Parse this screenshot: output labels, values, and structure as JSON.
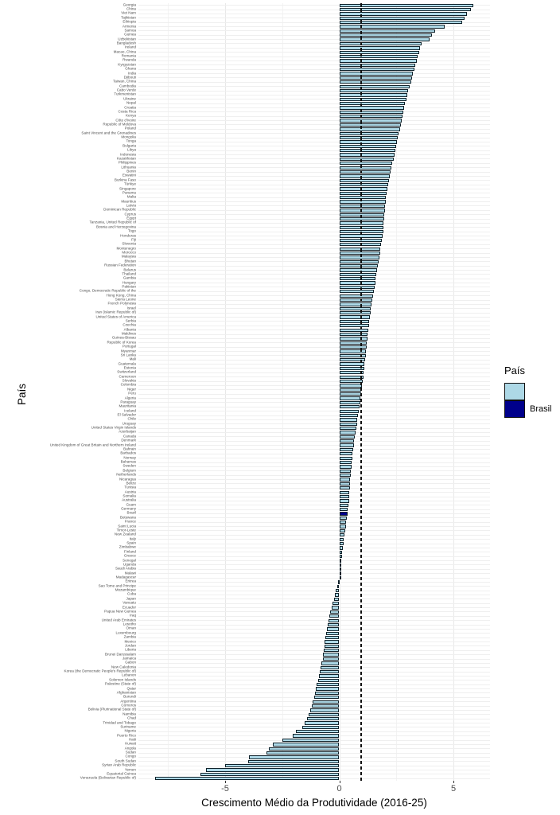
{
  "chart_data": {
    "type": "bar",
    "orientation": "horizontal",
    "xlabel": "Crescimento Médio da Produtividade (2016-25)",
    "ylabel": "País",
    "xlim": [
      -8.8,
      6.6
    ],
    "x_ticks": [
      {
        "value": -5,
        "label": "-5"
      },
      {
        "value": 0,
        "label": "0"
      },
      {
        "value": 5,
        "label": "5"
      }
    ],
    "x_minor_gridlines": [
      -7.5,
      -2.5,
      2.5
    ],
    "reference_line_x": 0.93,
    "highlight_category": "Brazil",
    "colors": {
      "default_fill": "#ADD8E6",
      "highlight_fill": "#00008B",
      "bar_outline": "#10222b",
      "reference_line": "#111111"
    },
    "categories": [
      "Georgia",
      "China",
      "Viet Nam",
      "Tajikistan",
      "Ethiopia",
      "Armenia",
      "Samoa",
      "Guinea",
      "Uzbekistan",
      "Bangladesh",
      "Ireland",
      "Macao, China",
      "Romania",
      "Rwanda",
      "Kyrgyzstan",
      "Ghana",
      "India",
      "Djibouti",
      "Taiwan, China",
      "Cambodia",
      "Cabo Verde",
      "Turkmenistan",
      "Ukraine",
      "Nepal",
      "Croatia",
      "Costa Rica",
      "Kenya",
      "Côte d'Ivoire",
      "Republic of Moldova",
      "Poland",
      "Saint Vincent and the Grenadines",
      "Mongolia",
      "Tonga",
      "Bulgaria",
      "Libya",
      "Indonesia",
      "Kazakhstan",
      "Philippines",
      "Lithuania",
      "Benin",
      "Eswatini",
      "Burkina Faso",
      "Türkiye",
      "Singapore",
      "Panama",
      "Malta",
      "Mauritius",
      "Latvia",
      "Dominican Republic",
      "Cyprus",
      "Egypt",
      "Tanzania, United Republic of",
      "Bosnia and Herzegovina",
      "Togo",
      "Honduras",
      "Fiji",
      "Slovenia",
      "Montenegro",
      "Morocco",
      "Malaysia",
      "Bhutan",
      "Russian Federation",
      "Belarus",
      "Thailand",
      "Gambia",
      "Hungary",
      "Pakistan",
      "Congo, Democratic Republic of the",
      "Hong Kong, China",
      "Sierra Leone",
      "French Polynesia",
      "Israel",
      "Iran (Islamic Republic of)",
      "United States of America",
      "Serbia",
      "Czechia",
      "Albania",
      "Maldives",
      "Guinea-Bissau",
      "Republic of Korea",
      "Portugal",
      "Myanmar",
      "Sri Lanka",
      "Mali",
      "Guatemala",
      "Estonia",
      "Switzerland",
      "Cameroon",
      "Slovakia",
      "Colombia",
      "Niger",
      "Peru",
      "Algeria",
      "Paraguay",
      "Mauritania",
      "Iceland",
      "El Salvador",
      "Chile",
      "Uruguay",
      "United States Virgin Islands",
      "Azerbaijan",
      "Canada",
      "Denmark",
      "United Kingdom of Great Britain and Northern Ireland",
      "Bahrain",
      "Barbados",
      "Norway",
      "Bahamas",
      "Sweden",
      "Belgium",
      "Netherlands",
      "Nicaragua",
      "Belize",
      "Tunisia",
      "Austria",
      "Somalia",
      "Australia",
      "Guam",
      "Germany",
      "Brazil",
      "Botswana",
      "France",
      "Saint Lucia",
      "Timor-Leste",
      "New Zealand",
      "Italy",
      "Spain",
      "Zimbabwe",
      "Finland",
      "Greece",
      "Senegal",
      "Uganda",
      "Saudi Arabia",
      "Malawi",
      "Madagascar",
      "Eritrea",
      "Sao Tome and Principe",
      "Mozambique",
      "Cuba",
      "Japan",
      "Vanuatu",
      "Ecuador",
      "Papua New Guinea",
      "Iraq",
      "United Arab Emirates",
      "Lesotho",
      "Oman",
      "Luxembourg",
      "Zambia",
      "Mexico",
      "Jordan",
      "Liberia",
      "Brunei Darussalam",
      "Jamaica",
      "Gabon",
      "New Caledonia",
      "Korea (the Democratic People's Republic of)",
      "Lebanon",
      "Solomon Islands",
      "Palestine (State of)",
      "Qatar",
      "Afghanistan",
      "Burundi",
      "Argentina",
      "Comoros",
      "Bolivia (Plurinational State of)",
      "Namibia",
      "Chad",
      "Trinidad and Tobago",
      "Suriname",
      "Nigeria",
      "Puerto Rico",
      "Haiti",
      "Kuwait",
      "Angola",
      "Sudan",
      "Congo",
      "South Sudan",
      "Syrian Arab Republic",
      "Yemen",
      "Equatorial Guinea",
      "Venezuela (Bolivarian Republic of)"
    ],
    "values": [
      5.87,
      5.76,
      5.58,
      5.49,
      5.37,
      4.62,
      4.19,
      4.07,
      3.95,
      3.62,
      3.55,
      3.49,
      3.44,
      3.39,
      3.34,
      3.29,
      3.24,
      3.19,
      3.14,
      3.08,
      3.02,
      2.97,
      2.93,
      2.89,
      2.85,
      2.81,
      2.77,
      2.73,
      2.69,
      2.65,
      2.61,
      2.57,
      2.53,
      2.49,
      2.45,
      2.41,
      2.37,
      2.33,
      2.29,
      2.25,
      2.21,
      2.17,
      2.13,
      2.1,
      2.07,
      2.05,
      2.03,
      2.01,
      1.99,
      1.97,
      1.96,
      1.95,
      1.93,
      1.92,
      1.9,
      1.87,
      1.84,
      1.81,
      1.78,
      1.75,
      1.72,
      1.69,
      1.66,
      1.63,
      1.6,
      1.57,
      1.54,
      1.51,
      1.48,
      1.45,
      1.42,
      1.39,
      1.36,
      1.33,
      1.31,
      1.29,
      1.27,
      1.25,
      1.23,
      1.21,
      1.19,
      1.17,
      1.15,
      1.13,
      1.11,
      1.09,
      1.07,
      1.05,
      1.02,
      0.99,
      0.97,
      0.95,
      0.93,
      0.91,
      0.89,
      0.85,
      0.82,
      0.8,
      0.78,
      0.75,
      0.72,
      0.69,
      0.66,
      0.63,
      0.61,
      0.59,
      0.57,
      0.55,
      0.53,
      0.51,
      0.5,
      0.48,
      0.47,
      0.46,
      0.45,
      0.43,
      0.42,
      0.4,
      0.38,
      0.36,
      0.33,
      0.3,
      0.28,
      0.25,
      0.23,
      0.2,
      0.18,
      0.15,
      0.13,
      0.11,
      0.09,
      0.07,
      0.05,
      0.03,
      0.01,
      -0.04,
      -0.09,
      -0.14,
      -0.19,
      -0.24,
      -0.29,
      -0.34,
      -0.39,
      -0.44,
      -0.48,
      -0.52,
      -0.55,
      -0.58,
      -0.61,
      -0.63,
      -0.66,
      -0.68,
      -0.7,
      -0.73,
      -0.77,
      -0.81,
      -0.84,
      -0.89,
      -0.92,
      -0.98,
      -1.02,
      -1.05,
      -1.1,
      -1.16,
      -1.21,
      -1.27,
      -1.33,
      -1.4,
      -1.5,
      -1.62,
      -1.91,
      -2.03,
      -2.49,
      -2.9,
      -3.07,
      -3.19,
      -3.94,
      -4.0,
      -4.99,
      -5.82,
      -6.09,
      -8.07
    ]
  },
  "legend": {
    "title": "País",
    "items": [
      {
        "label": "",
        "color": "#ADD8E6"
      },
      {
        "label": "Brasil",
        "color": "#00008B"
      }
    ]
  }
}
